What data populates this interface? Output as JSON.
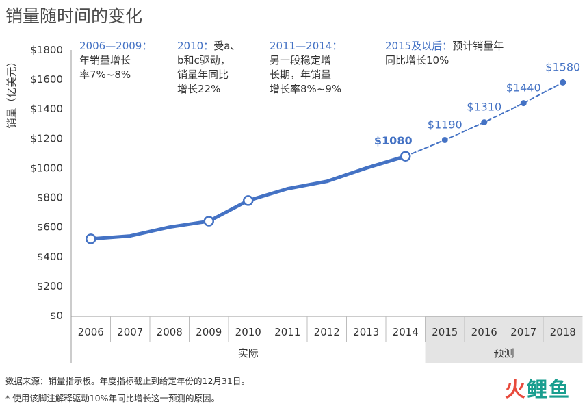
{
  "title": "销量随时间的变化",
  "chart_data": {
    "type": "line",
    "ylabel": "销量（亿美元）",
    "ylim": [
      0,
      1800
    ],
    "yticks": [
      "$0",
      "$200",
      "$400",
      "$600",
      "$800",
      "$1000",
      "$1200",
      "$1400",
      "$1600",
      "$1800"
    ],
    "categories": [
      "2006",
      "2007",
      "2008",
      "2009",
      "2010",
      "2011",
      "2012",
      "2013",
      "2014",
      "2015",
      "2016",
      "2017",
      "2018"
    ],
    "series": [
      {
        "name": "实际",
        "x": [
          "2006",
          "2007",
          "2008",
          "2009",
          "2010",
          "2011",
          "2012",
          "2013",
          "2014"
        ],
        "values": [
          520,
          540,
          600,
          640,
          780,
          860,
          910,
          1000,
          1080
        ],
        "markers": [
          "2006",
          "2009",
          "2010",
          "2014"
        ],
        "style": "solid"
      },
      {
        "name": "预测",
        "x": [
          "2014",
          "2015",
          "2016",
          "2017",
          "2018"
        ],
        "values": [
          1080,
          1190,
          1310,
          1440,
          1580
        ],
        "style": "dashed"
      }
    ],
    "data_labels": [
      {
        "x": "2014",
        "text": "$1080",
        "bold": true
      },
      {
        "x": "2015",
        "text": "$1190"
      },
      {
        "x": "2016",
        "text": "$1310"
      },
      {
        "x": "2017",
        "text": "$1440"
      },
      {
        "x": "2018",
        "text": "$1580"
      }
    ],
    "groups": [
      {
        "label": "实际",
        "from": "2006",
        "to": "2014"
      },
      {
        "label": "预测",
        "from": "2015",
        "to": "2018"
      }
    ],
    "colors": {
      "line": "#4472c4",
      "forecast_band": "#e4e4e4",
      "axis": "#9a9a9a"
    }
  },
  "annotations": [
    {
      "head": "2006—2009：",
      "lines": [
        "年销量增长",
        "率7%~8%"
      ]
    },
    {
      "head": "2010：",
      "first": "受a、",
      "lines": [
        "b和c驱动，",
        "销量年同比",
        "增长22%"
      ]
    },
    {
      "head": "2011—2014：",
      "lines": [
        "另一段稳定增",
        "长期，年销量",
        "增长率8%~9%"
      ]
    },
    {
      "head": "2015及以后：",
      "first": "预计销量年",
      "lines": [
        "同比增长10%"
      ]
    }
  ],
  "footnotes": [
    "数据来源：销量指示板。年度指标截止到给定年份的12月31日。",
    "* 使用该脚注解释驱动10%年同比增长这一预测的原因。"
  ],
  "logo": {
    "a": "火",
    "b": "鲤鱼"
  }
}
